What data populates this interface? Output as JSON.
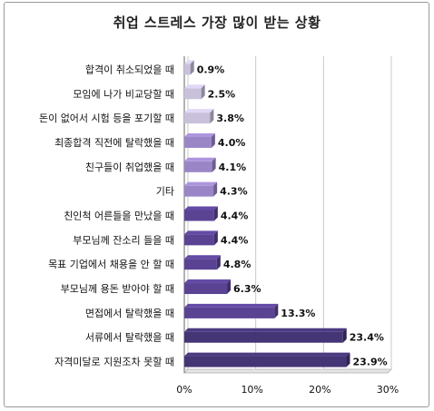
{
  "chart_data": {
    "type": "bar",
    "orientation": "horizontal",
    "title": "취업 스트레스 가장 많이 받는 상황",
    "categories": [
      "합격이 취소되었을 때",
      "모임에 나가 비교당할 때",
      "돈이 없어서 시험 등을 포기할 때",
      "최종합격 직전에 탈락했을 때",
      "친구들이 취업했을 때",
      "기타",
      "친인척 어른들을 만났을 때",
      "부모님께 잔소리 들을 때",
      "목표 기업에서 채용을 안 할 때",
      "부모님께 용돈 받아야 할 때",
      "면접에서 탈락했을 때",
      "서류에서 탈락했을 때",
      "자격미달로 지원조차 못할 때"
    ],
    "values": [
      0.9,
      2.5,
      3.8,
      4.0,
      4.1,
      4.3,
      4.4,
      4.4,
      4.8,
      6.3,
      13.3,
      23.4,
      23.9
    ],
    "value_labels": [
      "0.9%",
      "2.5%",
      "3.8%",
      "4.0%",
      "4.1%",
      "4.3%",
      "4.4%",
      "4.4%",
      "4.8%",
      "6.3%",
      "13.3%",
      "23.4%",
      "23.9%"
    ],
    "xlim": [
      0,
      30
    ],
    "xticks": [
      0,
      10,
      20,
      30
    ],
    "xtick_labels": [
      "0%",
      "10%",
      "20%",
      "30%"
    ],
    "xlabel": "",
    "ylabel": "",
    "grid": true,
    "colors": {
      "light": "#c9c1dc",
      "mid": "#9a86c6",
      "dark": "#5a4393",
      "darkest": "#443575",
      "grid": "#c8c8c8"
    }
  }
}
